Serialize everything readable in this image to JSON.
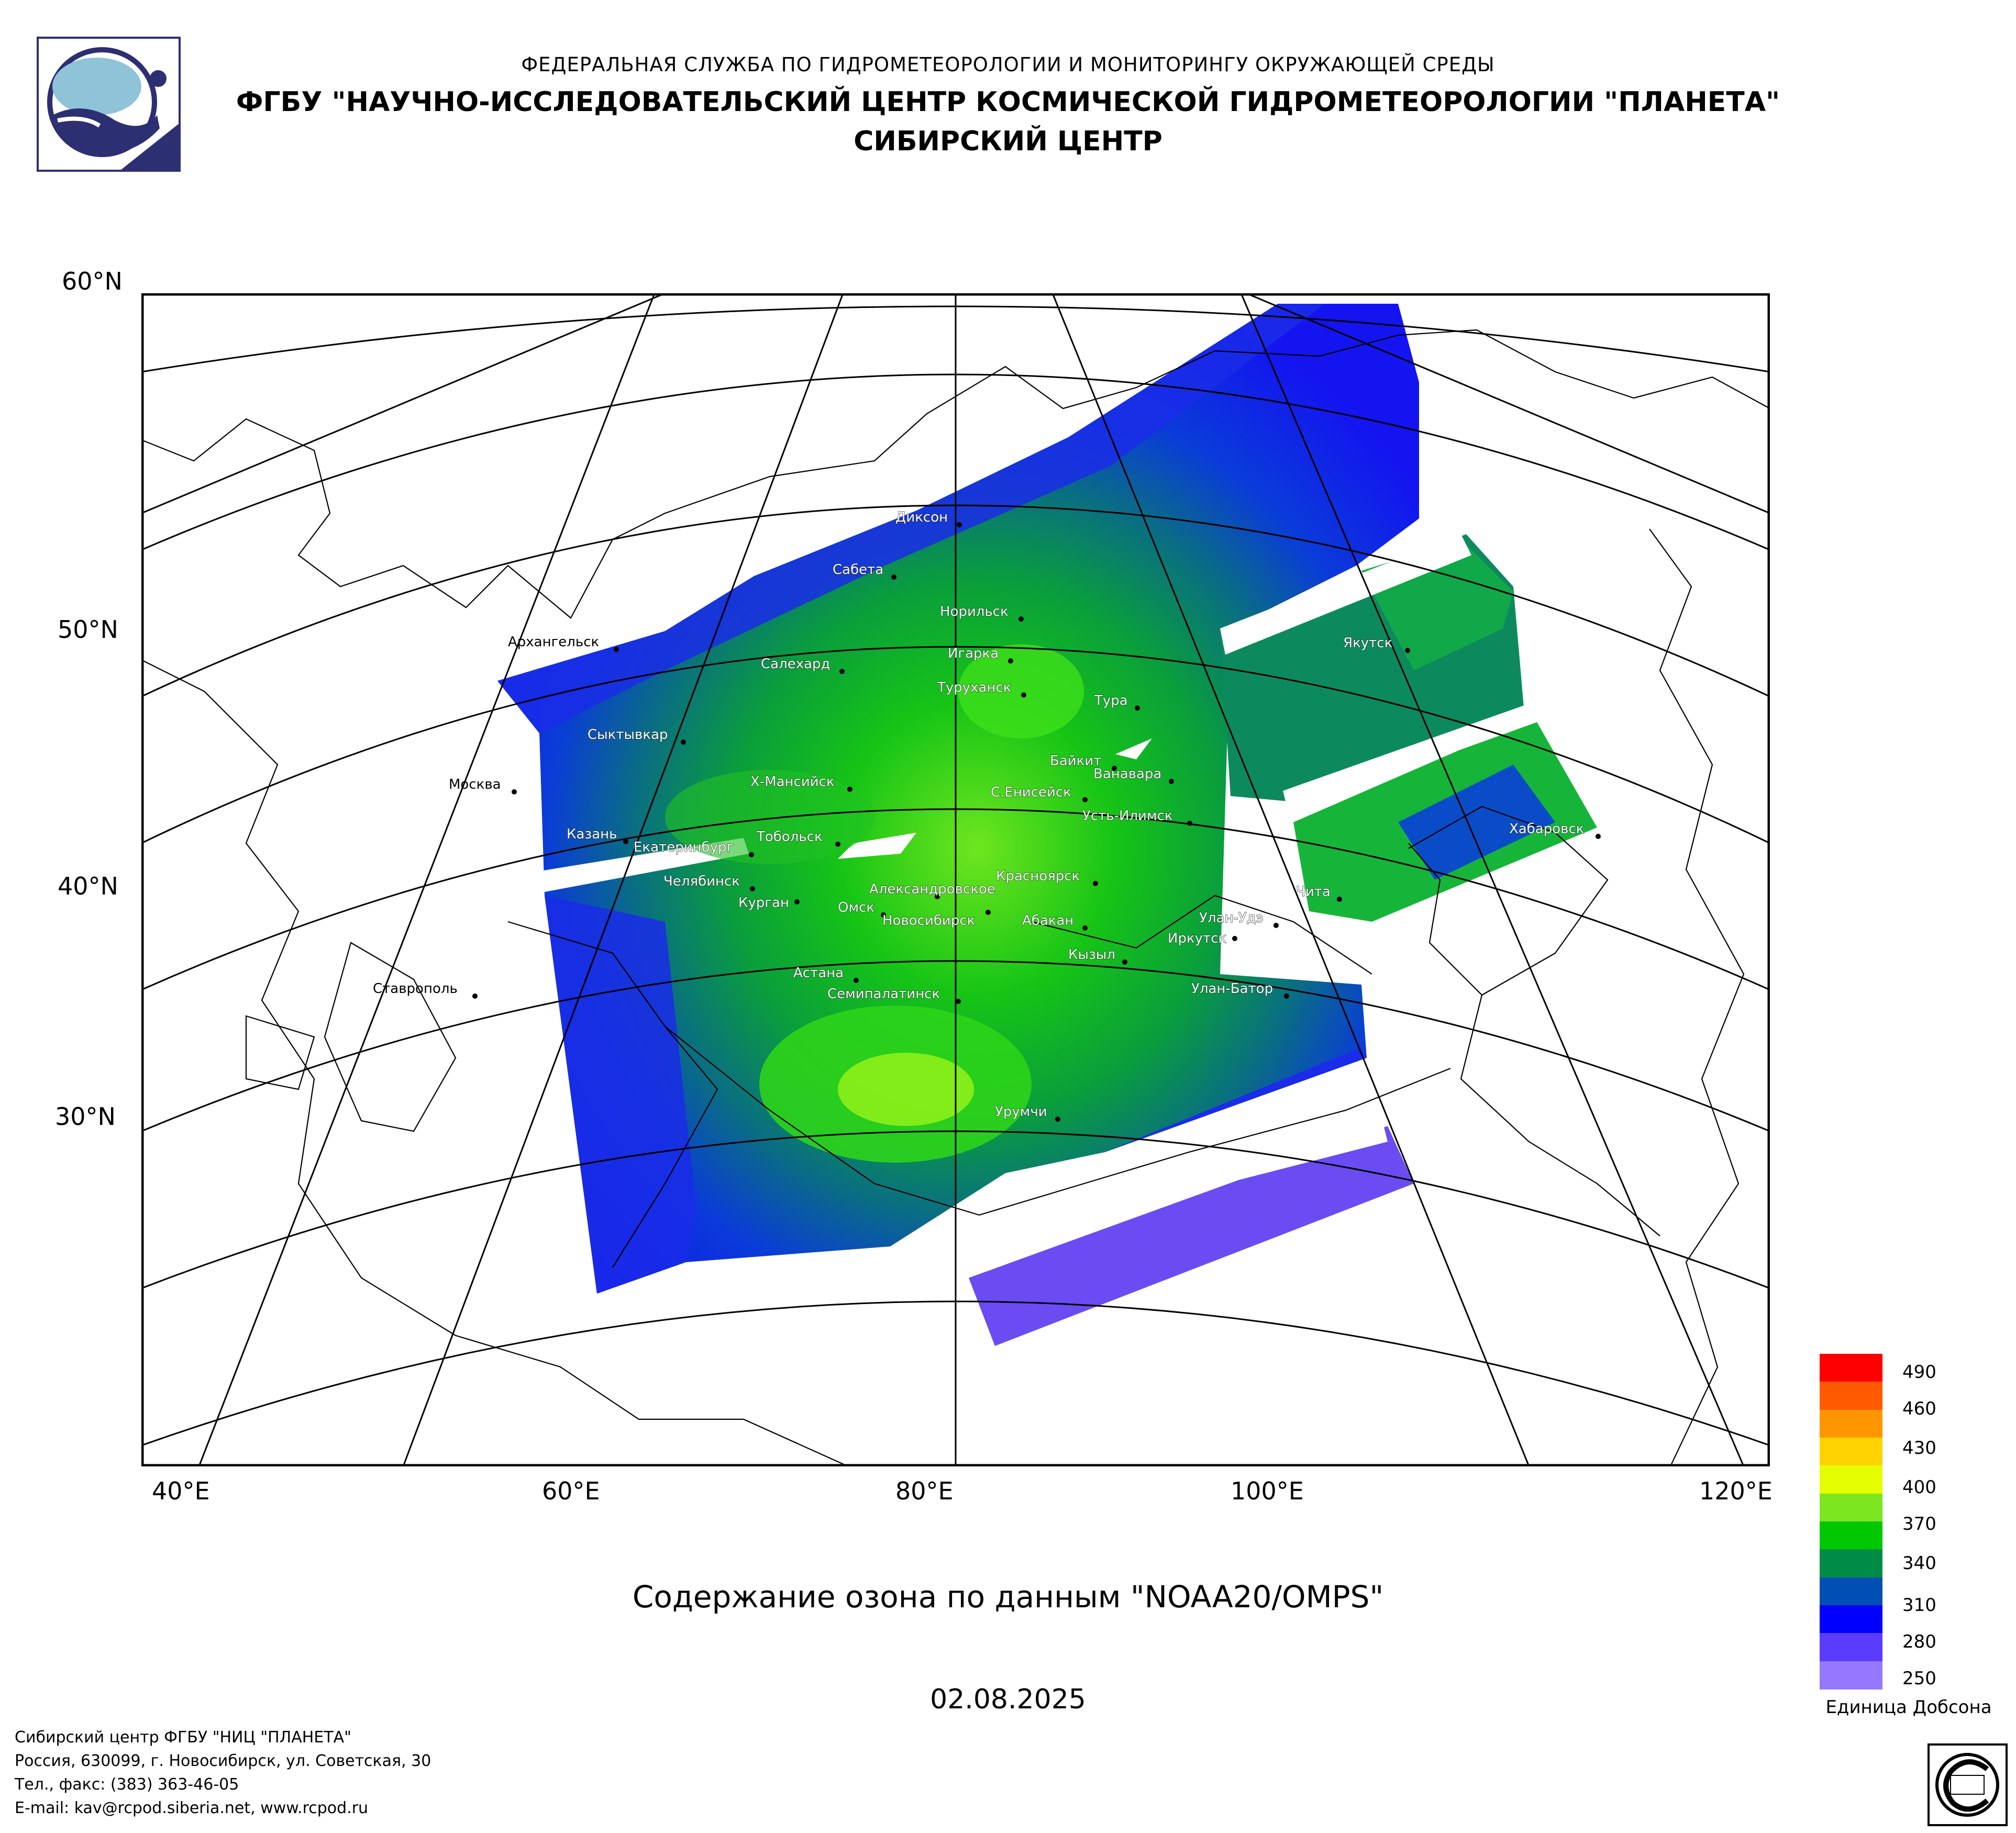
{
  "header": {
    "line1": "ФЕДЕРАЛЬНАЯ СЛУЖБА ПО ГИДРОМЕТЕОРОЛОГИИ И МОНИТОРИНГУ ОКРУЖАЮЩЕЙ СРЕДЫ",
    "line2": "ФГБУ \"НАУЧНО-ИССЛЕДОВАТЕЛЬСКИЙ ЦЕНТР КОСМИЧЕСКОЙ ГИДРОМЕТЕОРОЛОГИИ \"ПЛАНЕТА\"",
    "line3": "СИБИРСКИЙ ЦЕНТР"
  },
  "map": {
    "lat_labels": [
      "60°N",
      "50°N",
      "40°N",
      "30°N"
    ],
    "lon_labels": [
      "40°E",
      "60°E",
      "80°E",
      "100°E",
      "120°E"
    ],
    "cities": [
      "Диксон",
      "Сабета",
      "Норильск",
      "Игарка",
      "Салехард",
      "Архангельск",
      "Туруханск",
      "Тура",
      "Якутск",
      "Сыктывкар",
      "Байкит",
      "Ванавара",
      "Х-Мансийск",
      "С.Енисейск",
      "Москва",
      "Усть-Илимск",
      "Казань",
      "Тобольск",
      "Екатеринбург",
      "Хабаровск",
      "Красноярск",
      "Челябинск",
      "Александровское",
      "Чита",
      "Курган",
      "Омск",
      "Новосибирск",
      "Абакан",
      "Улан-Удэ",
      "Иркутск",
      "Кызыл",
      "Астана",
      "Семипалатинск",
      "Улан-Батор",
      "Ставрополь",
      "Урумчи"
    ]
  },
  "subtitle": "Содержание озона по данным \"NOAA20/OMPS\"",
  "date": "02.08.2025",
  "legend": {
    "ticks": [
      "490",
      "460",
      "430",
      "400",
      "370",
      "340",
      "310",
      "280",
      "250"
    ],
    "unit": "Единица Добсона",
    "colors": [
      "#ff0000",
      "#ff5a00",
      "#ff9600",
      "#ffd200",
      "#e6ff00",
      "#7ce620",
      "#00c800",
      "#008c46",
      "#0050b4",
      "#0000ff",
      "#5a3cff",
      "#9678ff"
    ]
  },
  "footer": {
    "line1": "Сибирский центр ФГБУ \"НИЦ \"ПЛАНЕТА\"",
    "line2": "Россия, 630099, г. Новосибирск, ул. Советская, 30",
    "line3": "Тел., факс: (383) 363-46-05",
    "line4": "E-mail: kav@rcpod.siberia.net, www.rcpod.ru"
  }
}
